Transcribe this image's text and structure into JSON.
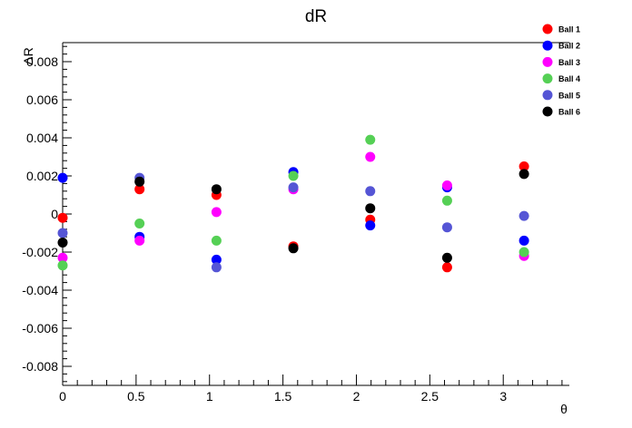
{
  "chart_data": {
    "type": "scatter",
    "title": "dR",
    "xlabel": "θ",
    "ylabel": "ΔR",
    "xlim": [
      0,
      3.45
    ],
    "ylim": [
      -0.009,
      0.009
    ],
    "xticks": [
      0,
      0.5,
      1,
      1.5,
      2,
      2.5,
      3
    ],
    "xtick_labels": [
      "0",
      "0.5",
      "1",
      "1.5",
      "2",
      "2.5",
      "3"
    ],
    "yticks": [
      -0.008,
      -0.006,
      -0.004,
      -0.002,
      0,
      0.002,
      0.004,
      0.006,
      0.008
    ],
    "ytick_labels": [
      "-0.008",
      "-0.006",
      "-0.004",
      "-0.002",
      "0",
      "0.002",
      "0.004",
      "0.006",
      "0.008"
    ],
    "grid": false,
    "legend_position": "top-right",
    "x": [
      0,
      0.5236,
      1.0472,
      1.5708,
      2.0944,
      2.618,
      3.1416
    ],
    "series": [
      {
        "name": "Ball 1",
        "color": "#ff0000",
        "values": [
          -0.0002,
          0.0013,
          0.001,
          -0.0017,
          -0.0003,
          -0.0028,
          0.0025
        ]
      },
      {
        "name": "Ball 2",
        "color": "#0000ff",
        "values": [
          0.0019,
          -0.0012,
          -0.0024,
          0.0022,
          -0.0006,
          0.0014,
          -0.0014
        ]
      },
      {
        "name": "Ball 3",
        "color": "#ff00ff",
        "values": [
          -0.0023,
          -0.0014,
          0.0001,
          0.0013,
          0.003,
          0.0015,
          -0.0022
        ]
      },
      {
        "name": "Ball 4",
        "color": "#55d055",
        "values": [
          -0.0027,
          -0.0005,
          -0.0014,
          0.002,
          0.0039,
          0.0007,
          -0.002
        ]
      },
      {
        "name": "Ball 5",
        "color": "#5555d5",
        "values": [
          -0.001,
          0.0019,
          -0.0028,
          0.0014,
          0.0012,
          -0.0007,
          -0.0001
        ]
      },
      {
        "name": "Ball 6",
        "color": "#000000",
        "values": [
          -0.0015,
          0.0017,
          0.0013,
          -0.0018,
          0.0003,
          -0.0023,
          0.0021
        ]
      }
    ]
  }
}
